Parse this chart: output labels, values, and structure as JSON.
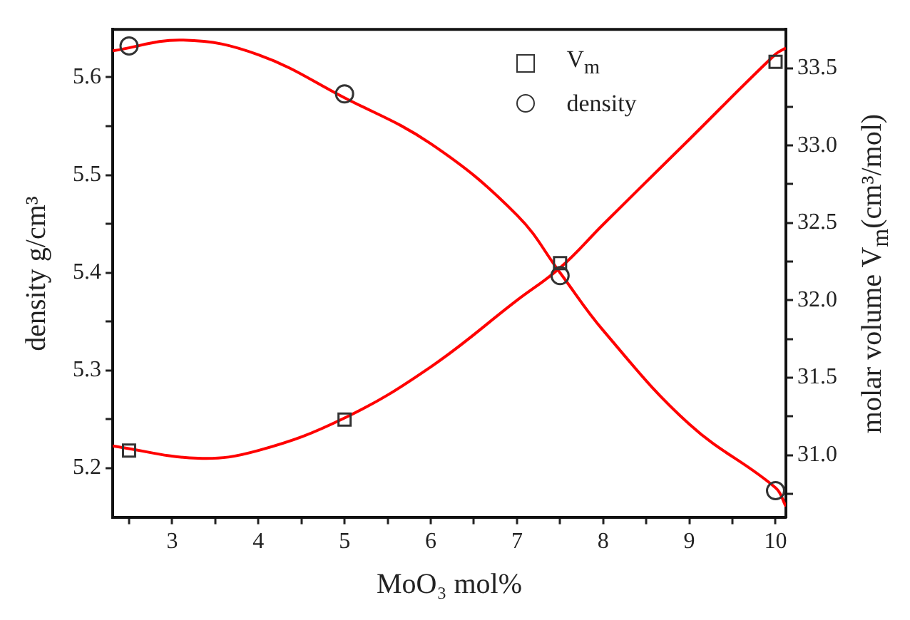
{
  "chart_data": {
    "type": "scatter",
    "xlabel": "MoO₃ mol%",
    "ylabel": "density g/cm³",
    "y2label": "molar volume V$_{m}$(cm³/mol)",
    "x": [
      2.5,
      5,
      7.5,
      10
    ],
    "series": [
      {
        "name": "V$_{m}$",
        "axis": "y2",
        "marker": "square",
        "color": "#333333",
        "values": [
          31.03,
          31.23,
          32.24,
          33.54
        ]
      },
      {
        "name": "density",
        "marker": "circle",
        "color": "#333333",
        "values": [
          5.632,
          5.583,
          5.397,
          5.177
        ]
      },
      {
        "type": "line",
        "axis": "y2",
        "marker": "none",
        "color": "#ff0000",
        "x": [
          2.31,
          3.3,
          4,
          5,
          6,
          7,
          7.5,
          8,
          9,
          10,
          10.12
        ],
        "values": [
          31.06,
          30.98,
          31.03,
          31.24,
          31.57,
          32.0,
          32.21,
          32.49,
          33.04,
          33.59,
          33.63
        ]
      },
      {
        "type": "line",
        "marker": "none",
        "color": "#ff0000",
        "x": [
          2.31,
          3.13,
          4,
          5,
          6,
          7,
          7.5,
          8,
          9,
          10,
          10.12
        ],
        "values": [
          5.627,
          5.638,
          5.623,
          5.579,
          5.532,
          5.459,
          5.4,
          5.341,
          5.245,
          5.18,
          5.161
        ]
      }
    ],
    "xlim": [
      2.31,
      10.12
    ],
    "xticks": [
      {
        "value": 2.5,
        "label": null
      },
      3,
      {
        "value": 3.5,
        "label": null
      },
      4,
      {
        "value": 4.5,
        "label": null
      },
      5,
      {
        "value": 5.5,
        "label": null
      },
      6,
      {
        "value": 6.5,
        "label": null
      },
      7,
      {
        "value": 7.5,
        "label": null
      },
      8,
      {
        "value": 8.5,
        "label": null
      },
      9,
      {
        "value": 9.5,
        "label": null
      },
      10
    ],
    "ylim": [
      5.15,
      5.649
    ],
    "yticks": [
      5.2,
      {
        "value": 5.25,
        "label": null
      },
      5.3,
      {
        "value": 5.35,
        "label": null
      },
      5.4,
      {
        "value": 5.45,
        "label": null
      },
      5.5,
      {
        "value": 5.55,
        "label": null
      },
      5.6
    ],
    "y2lim": [
      30.6,
      33.75
    ],
    "y2ticks": [
      {
        "value": 30.75,
        "label": null
      },
      {
        "value": 31,
        "label": "31.0"
      },
      {
        "value": 31.25,
        "label": null
      },
      {
        "value": 31.5,
        "label": "31.5"
      },
      {
        "value": 31.75,
        "label": null
      },
      {
        "value": 32,
        "label": "32.0"
      },
      {
        "value": 32.25,
        "label": null
      },
      {
        "value": 32.5,
        "label": "32.5"
      },
      {
        "value": 32.75,
        "label": null
      },
      {
        "value": 33,
        "label": "33.0"
      },
      {
        "value": 33.25,
        "label": null
      },
      {
        "value": 33.5,
        "label": "33.5"
      }
    ],
    "grid": false,
    "legend": "top right",
    "line_style": "solid"
  }
}
